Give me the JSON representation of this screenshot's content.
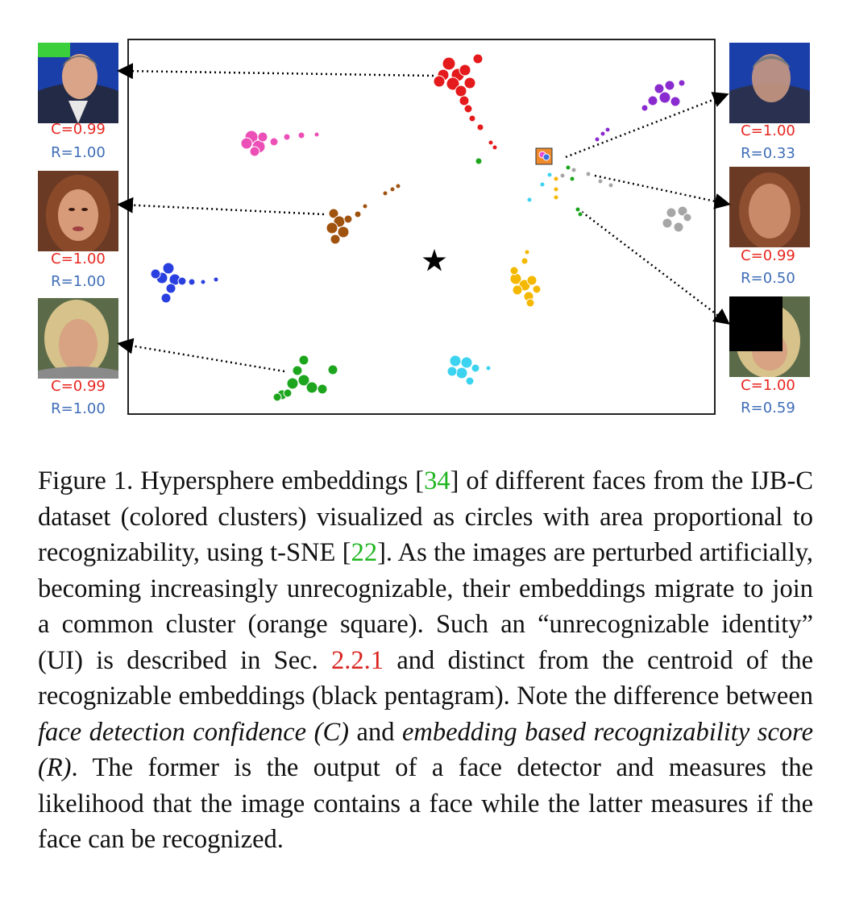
{
  "figure": {
    "faces_left": [
      {
        "c": "C=0.99",
        "r": "R=1.00"
      },
      {
        "c": "C=1.00",
        "r": "R=1.00"
      },
      {
        "c": "C=0.99",
        "r": "R=1.00"
      }
    ],
    "faces_right": [
      {
        "c": "C=1.00",
        "r": "R=0.33"
      },
      {
        "c": "C=0.99",
        "r": "R=0.50"
      },
      {
        "c": "C=1.00",
        "r": "R=0.59"
      }
    ],
    "cluster_colors": {
      "red": "#e41a1c",
      "pink": "#ec4fb6",
      "brown": "#a0520f",
      "blue": "#2a3fe0",
      "green": "#1ea51e",
      "cyan": "#3cd3f0",
      "yellow": "#f5b800",
      "purple": "#8a2bd0",
      "gray": "#a6a6a6",
      "ui_square": "#f08a2a",
      "centroid_star": "#000000"
    }
  },
  "caption": {
    "t1": "Figure 1.   Hypersphere embeddings [",
    "ref1": "34",
    "t2": "] of different faces from the IJB-C dataset (colored clusters) visualized as circles with area proportional to recognizability, using t-SNE [",
    "ref2": "22",
    "t3": "].  As the images are perturbed artificially, becoming increasingly unrecognizable, their embeddings migrate to join a common cluster (orange square).  Such an “unrecognizable identity” (UI) is described in Sec. ",
    "ref3": "2.2.1",
    "t4": " and distinct from the centroid of the recognizable embeddings (black pentagram). Note the difference between ",
    "em1": "face detection confidence (C)",
    "t5": " and ",
    "em2": "embedding based recognizability score (R)",
    "t6": ". The former is the output of a face detector and measures the likelihood that the image contains a face while the latter measures if the face can be recognized."
  }
}
